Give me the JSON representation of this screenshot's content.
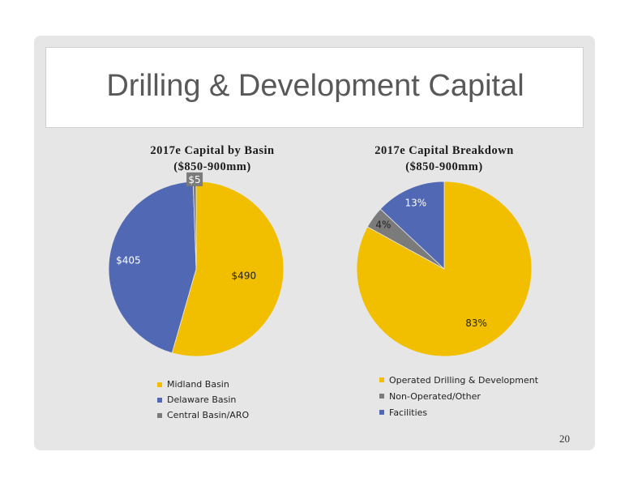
{
  "slide": {
    "title": "Drilling & Development Capital",
    "page_number": "20"
  },
  "chart_data": [
    {
      "type": "pie",
      "title_line1": "2017e Capital by Basin",
      "title_line2": "($850-900mm)",
      "categories": [
        "Midland Basin",
        "Delaware Basin",
        "Central Basin/ARO"
      ],
      "values": [
        490,
        405,
        5
      ],
      "labels": [
        "$490",
        "$405",
        "$5"
      ],
      "colors": [
        "#f2bf00",
        "#5169b5",
        "#7b7b7b"
      ]
    },
    {
      "type": "pie",
      "title_line1": "2017e Capital Breakdown",
      "title_line2": "($850-900mm)",
      "categories": [
        "Operated Drilling & Development",
        "Non-Operated/Other",
        "Facilities"
      ],
      "values": [
        83,
        4,
        13
      ],
      "labels": [
        "83%",
        "4%",
        "13%"
      ],
      "colors": [
        "#f2bf00",
        "#7b7b7b",
        "#5169b5"
      ]
    }
  ]
}
